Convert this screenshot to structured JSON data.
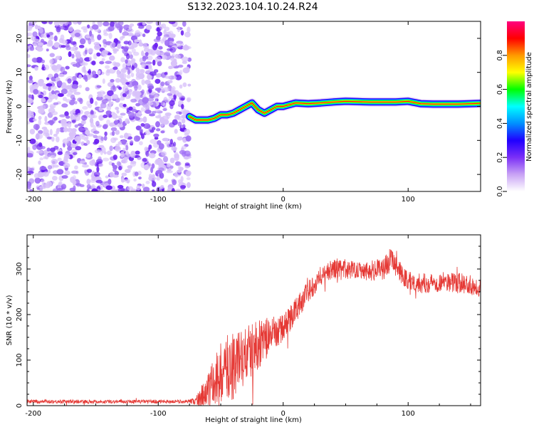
{
  "figure_title": "S132.2023.104.10.24.R24",
  "colors": {
    "series_line": "#e53935",
    "spectrum_noise": "#7b2ff7",
    "axis": "#000000"
  },
  "chart_data": [
    {
      "type": "heatmap",
      "title": "S132.2023.104.10.24.R24",
      "xlabel": "Height of straight line (km)",
      "ylabel": "Frequency (Hz)",
      "xlim": [
        -205,
        158
      ],
      "ylim": [
        -25,
        25
      ],
      "xticks": [
        -200,
        -100,
        0,
        100
      ],
      "yticks": [
        -20,
        -10,
        0,
        10,
        20
      ],
      "colorbar": {
        "label": "Normalized spectral amplitude",
        "range": [
          0,
          1
        ],
        "ticks": [
          0.0,
          0.2,
          0.4,
          0.6,
          0.8
        ],
        "colormap": [
          "#ffffff",
          "#c9a3f5",
          "#7b2ff7",
          "#2000ff",
          "#0090ff",
          "#00ffff",
          "#00ff00",
          "#ffff00",
          "#ff9900",
          "#ff0000",
          "#ff0080"
        ]
      },
      "noise_region_x": [
        -205,
        -75
      ],
      "ridge": {
        "x": [
          -75,
          -70,
          -65,
          -60,
          -55,
          -50,
          -45,
          -40,
          -35,
          -30,
          -25,
          -20,
          -15,
          -10,
          -5,
          0,
          5,
          10,
          20,
          30,
          40,
          50,
          60,
          70,
          80,
          90,
          100,
          110,
          120,
          130,
          140,
          150,
          158
        ],
        "frequency_hz": [
          -3,
          -4,
          -4,
          -4,
          -3.5,
          -2.5,
          -2.5,
          -2,
          -1,
          0,
          1,
          -1,
          -2,
          -1,
          0,
          0,
          0.5,
          1,
          0.8,
          1,
          1.3,
          1.5,
          1.4,
          1.3,
          1.3,
          1.3,
          1.5,
          0.8,
          0.7,
          0.7,
          0.7,
          0.8,
          0.9
        ]
      }
    },
    {
      "type": "line",
      "xlabel": "Height of straight line (km)",
      "ylabel": "SNR (10 * v/v)",
      "xlim": [
        -205,
        158
      ],
      "ylim": [
        0,
        375
      ],
      "xticks": [
        -200,
        -100,
        0,
        100
      ],
      "yticks": [
        0,
        100,
        200,
        300
      ],
      "series": [
        {
          "trend": {
            "x": [
              -205,
              -80,
              -70,
              -60,
              -50,
              -40,
              -30,
              -20,
              -10,
              0,
              10,
              20,
              30,
              40,
              50,
              60,
              70,
              80,
              85,
              90,
              95,
              100,
              110,
              120,
              130,
              140,
              150,
              158
            ],
            "y": [
              9,
              9,
              10,
              28,
              70,
              90,
              110,
              135,
              155,
              170,
              210,
              250,
              285,
              300,
              298,
              300,
              295,
              300,
              320,
              310,
              285,
              275,
              268,
              270,
              272,
              270,
              265,
              260
            ]
          },
          "noise_amplitude": {
            "x": [
              -205,
              -75,
              -70,
              -60,
              -50,
              -40,
              -30,
              -20,
              -10,
              0,
              10,
              20,
              30,
              60,
              80,
              90,
              100,
              158
            ],
            "y": [
              4,
              4,
              10,
              45,
              70,
              80,
              65,
              55,
              40,
              30,
              28,
              25,
              22,
              20,
              25,
              25,
              22,
              22
            ]
          }
        }
      ]
    }
  ]
}
